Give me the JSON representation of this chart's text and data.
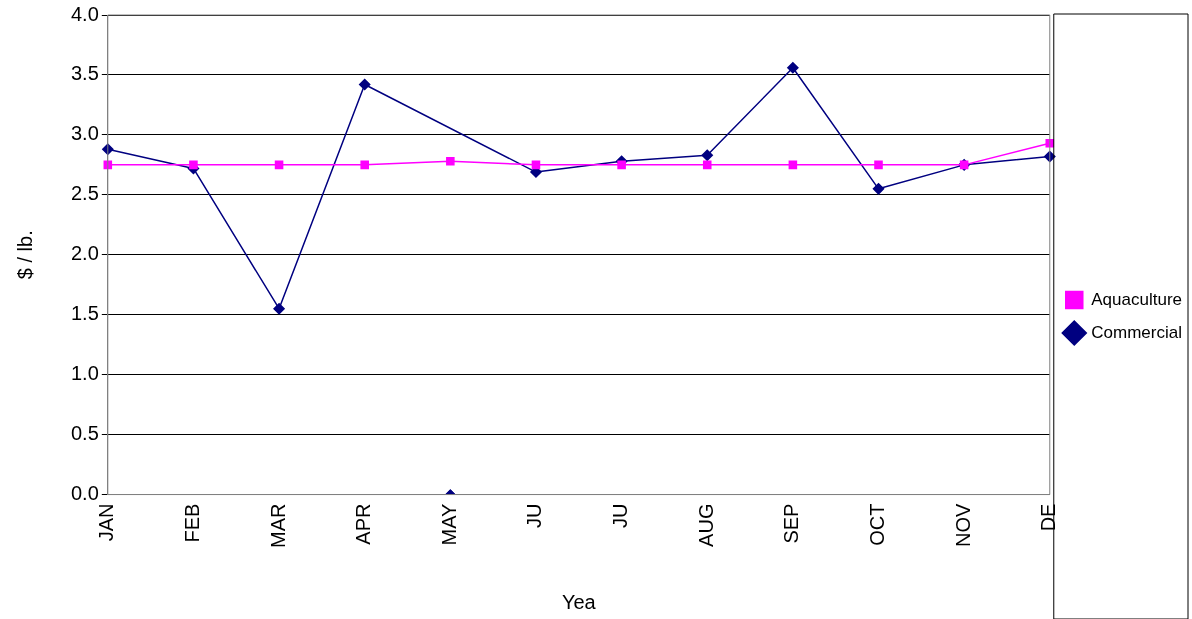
{
  "chart_data": {
    "type": "line",
    "xlabel": "Yea",
    "ylabel": "$ / lb.",
    "categories": [
      "JAN",
      "FEB",
      "MAR",
      "APR",
      "MAY",
      "JU",
      "JU",
      "AUG",
      "SEP",
      "OCT",
      "NOV",
      "DE"
    ],
    "series": [
      {
        "name": "Commercial",
        "color": "#000080",
        "marker": "diamond",
        "values": [
          2.88,
          2.72,
          1.55,
          3.42,
          null,
          2.69,
          2.78,
          2.83,
          3.56,
          2.55,
          2.75,
          2.82
        ]
      },
      {
        "name": "Aquaculture",
        "color": "#ff00ff",
        "marker": "square",
        "values": [
          2.75,
          2.75,
          2.75,
          2.75,
          2.78,
          2.75,
          2.75,
          2.75,
          2.75,
          2.75,
          2.75,
          2.93
        ]
      },
      {
        "type": "scatter",
        "color": "#000080",
        "marker": "diamond",
        "x": [
          "MAY"
        ],
        "values": [
          0
        ]
      }
    ],
    "ylim": [
      0,
      4
    ],
    "yticks": [
      {
        "value": 0,
        "label": "0.0"
      },
      {
        "value": 0.5,
        "label": "0.5"
      },
      {
        "value": 1,
        "label": "1.0"
      },
      {
        "value": 1.5,
        "label": "1.5"
      },
      {
        "value": 2,
        "label": "2.0"
      },
      {
        "value": 2.5,
        "label": "2.5"
      },
      {
        "value": 3,
        "label": "3.0"
      },
      {
        "value": 3.5,
        "label": "3.5"
      },
      {
        "value": 4,
        "label": "4.0"
      }
    ],
    "grid": "y",
    "legend": "right",
    "line_style": "solid"
  }
}
